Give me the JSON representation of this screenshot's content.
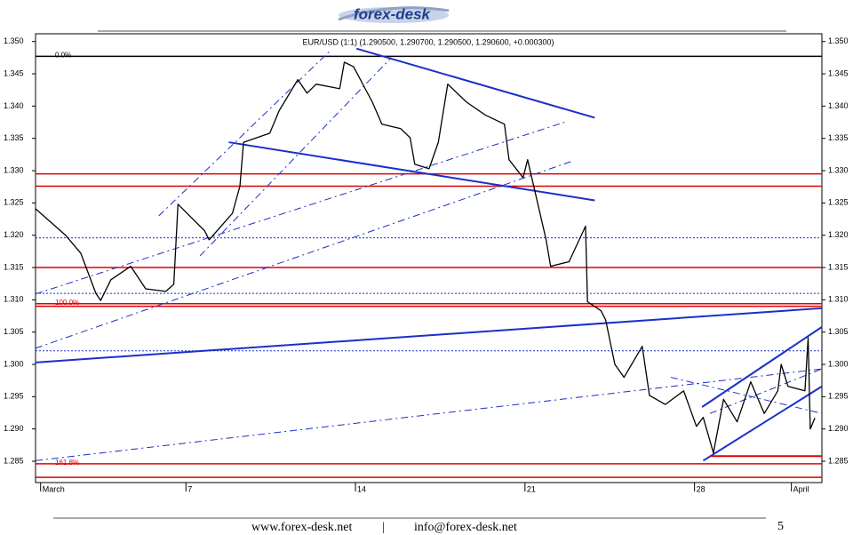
{
  "header": {
    "logo": "forex-desk"
  },
  "chart_data": {
    "type": "line",
    "title": "EUR/USD (1:1) (1.290500, 1.290700, 1.290500, 1.290600, +0.000300)",
    "color": "#000000",
    "x": [
      0.79,
      2.03,
      2.66,
      3.28,
      3.48,
      3.9,
      4.72,
      5.34,
      6.17,
      6.5,
      6.67,
      7.77,
      7.96,
      8.92,
      9.23,
      9.38,
      10.46,
      10.85,
      11.62,
      12.0,
      12.38,
      13.35,
      13.54,
      13.92,
      14.7,
      15.09,
      15.87,
      16.26,
      16.45,
      17.04,
      17.42,
      17.81,
      18.59,
      19.37,
      20.15,
      20.34,
      20.92,
      21.11,
      21.49,
      21.87,
      22.06,
      22.82,
      23.5,
      23.58,
      24.14,
      24.33,
      24.71,
      25.09,
      25.84,
      26.14,
      26.79,
      27.55,
      28.08,
      28.36,
      28.78,
      29.2,
      29.76,
      30.32,
      30.88,
      31.44,
      31.58,
      31.86,
      32.56,
      32.69,
      32.78,
      32.97
    ],
    "values": [
      1.3241,
      1.32,
      1.3172,
      1.311,
      1.3099,
      1.3131,
      1.3152,
      1.3117,
      1.3113,
      1.3124,
      1.3248,
      1.3207,
      1.3193,
      1.3234,
      1.3276,
      1.3344,
      1.3358,
      1.3393,
      1.3441,
      1.342,
      1.3434,
      1.3427,
      1.3468,
      1.3461,
      1.3406,
      1.3372,
      1.3365,
      1.3351,
      1.331,
      1.3303,
      1.3344,
      1.3434,
      1.3406,
      1.3386,
      1.3372,
      1.3317,
      1.3289,
      1.3317,
      1.3255,
      1.3193,
      1.3152,
      1.3159,
      1.3214,
      1.3097,
      1.3083,
      1.3069,
      1.3,
      1.298,
      1.3028,
      1.2952,
      1.2938,
      1.2959,
      1.2904,
      1.2918,
      1.2863,
      1.2946,
      1.2911,
      1.2973,
      1.2924,
      1.2959,
      1.3,
      1.2966,
      1.2959,
      1.3041,
      1.29,
      1.2917
    ],
    "xlim": [
      0.79,
      33.26
    ],
    "ylim": [
      1.2817,
      1.3512
    ],
    "xticks": [
      {
        "value": 1,
        "label": "March"
      },
      7,
      14,
      21,
      28,
      {
        "value": 32,
        "label": "April"
      }
    ],
    "yticks": [
      {
        "value": 1.285,
        "label": "1.285"
      },
      {
        "value": 1.29,
        "label": "1.290"
      },
      {
        "value": 1.295,
        "label": "1.295"
      },
      {
        "value": 1.3,
        "label": "1.300"
      },
      {
        "value": 1.305,
        "label": "1.305"
      },
      {
        "value": 1.31,
        "label": "1.310"
      },
      {
        "value": 1.315,
        "label": "1.315"
      },
      {
        "value": 1.32,
        "label": "1.320"
      },
      {
        "value": 1.325,
        "label": "1.325"
      },
      {
        "value": 1.33,
        "label": "1.330"
      },
      {
        "value": 1.335,
        "label": "1.335"
      },
      {
        "value": 1.34,
        "label": "1.340"
      },
      {
        "value": 1.345,
        "label": "1.345"
      },
      {
        "value": 1.35,
        "label": "1.350"
      }
    ],
    "levels": [
      {
        "value": 1.3477,
        "color": "#000000",
        "label": "0.0%"
      },
      {
        "value": 1.3295,
        "color": "#e00000"
      },
      {
        "value": 1.3276,
        "color": "#e00000"
      },
      {
        "value": 1.3196,
        "color": "#1a2fc8",
        "style": "dotted"
      },
      {
        "value": 1.315,
        "color": "#e00000"
      },
      {
        "value": 1.311,
        "color": "#1a2fc8",
        "style": "dotted"
      },
      {
        "value": 1.3094,
        "color": "#e00000",
        "label": "100.0%"
      },
      {
        "value": 1.309,
        "color": "#e00000"
      },
      {
        "value": 1.3021,
        "color": "#1a2fc8",
        "style": "dotted"
      },
      {
        "value": 1.2846,
        "color": "#e00000",
        "label": "161.8%"
      },
      {
        "value": 1.2825,
        "color": "#e00000"
      }
    ],
    "trendlines": [
      {
        "x": [
          14.04,
          23.88
        ],
        "y": [
          1.3489,
          1.3382
        ],
        "color": "#1a2fc8",
        "style": "solid"
      },
      {
        "x": [
          8.77,
          23.88
        ],
        "y": [
          1.3344,
          1.3254
        ],
        "color": "#1a2fc8",
        "style": "solid"
      },
      {
        "x": [
          0.79,
          33.26
        ],
        "y": [
          1.3003,
          1.3087
        ],
        "color": "#1a2fc8",
        "style": "solid"
      },
      {
        "x": [
          28.31,
          33.26
        ],
        "y": [
          1.2934,
          1.3058
        ],
        "color": "#1a2fc8",
        "style": "solid"
      },
      {
        "x": [
          28.36,
          33.26
        ],
        "y": [
          1.2851,
          1.2966
        ],
        "color": "#1a2fc8",
        "style": "solid"
      },
      {
        "x": [
          28.64,
          33.26
        ],
        "y": [
          1.2858,
          1.2858
        ],
        "color": "#e00000",
        "style": "solid"
      },
      {
        "x": [
          0.79,
          33.26
        ],
        "y": [
          1.2851,
          1.2993
        ],
        "color": "#1a2fc8",
        "style": "dashed"
      },
      {
        "x": [
          0.79,
          22.63
        ],
        "y": [
          1.3109,
          1.3375
        ],
        "color": "#1a2fc8",
        "style": "dashed"
      },
      {
        "x": [
          0.79,
          22.89
        ],
        "y": [
          1.3025,
          1.3314
        ],
        "color": "#1a2fc8",
        "style": "dashed"
      },
      {
        "x": [
          5.88,
          12.96
        ],
        "y": [
          1.323,
          1.3486
        ],
        "color": "#1a2fc8",
        "style": "dashed"
      },
      {
        "x": [
          7.58,
          15.48
        ],
        "y": [
          1.3168,
          1.3475
        ],
        "color": "#1a2fc8",
        "style": "dashed"
      },
      {
        "x": [
          27.02,
          33.26
        ],
        "y": [
          1.298,
          1.2924
        ],
        "color": "#1a2fc8",
        "style": "dashed"
      },
      {
        "x": [
          28.64,
          33.26
        ],
        "y": [
          1.2924,
          1.2993
        ],
        "color": "#1a2fc8",
        "style": "dashed"
      }
    ]
  },
  "footer": {
    "website": "www.forex-desk.net",
    "separator": "|",
    "email": "info@forex-desk.net",
    "page": "5"
  }
}
